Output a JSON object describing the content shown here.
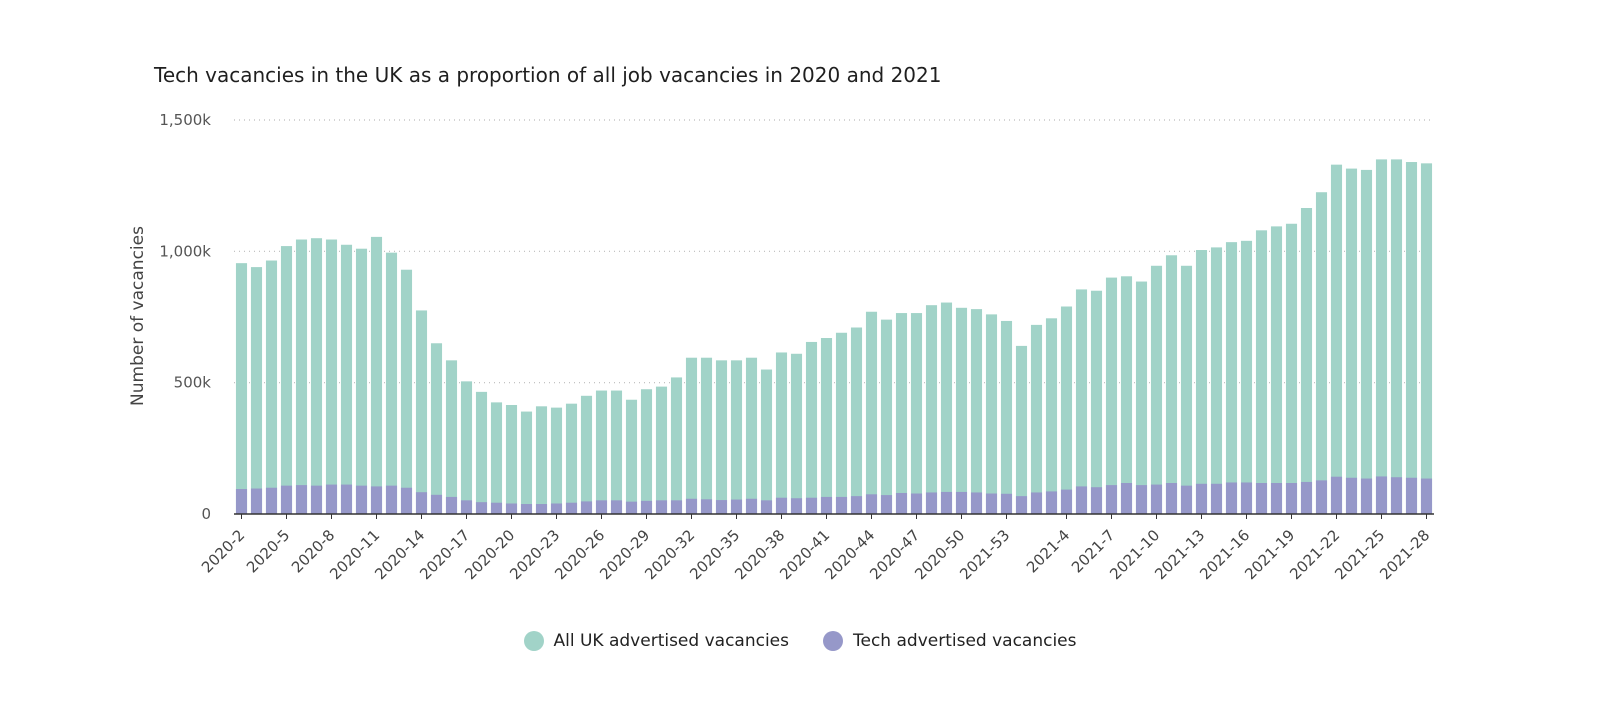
{
  "colors": {
    "all": "#a1d3c8",
    "tech": "#9698c9",
    "grid": "#bbbbbb",
    "axis": "#333333"
  },
  "chart_data": {
    "type": "bar",
    "title": "Tech vacancies in the UK as a proportion of all job vacancies in 2020 and 2021",
    "ylabel": "Number of vacancies",
    "xlabel": "",
    "ylim": [
      0,
      1500000
    ],
    "yticks": [
      {
        "value": 0,
        "label": "0"
      },
      {
        "value": 500000,
        "label": "500k"
      },
      {
        "value": 1000000,
        "label": "1,000k"
      },
      {
        "value": 1500000,
        "label": "1,500k"
      }
    ],
    "grid": true,
    "legend_position": "bottom",
    "categories": [
      "2020-2",
      "2020-3",
      "2020-4",
      "2020-5",
      "2020-6",
      "2020-7",
      "2020-8",
      "2020-9",
      "2020-10",
      "2020-11",
      "2020-12",
      "2020-13",
      "2020-14",
      "2020-15",
      "2020-16",
      "2020-17",
      "2020-18",
      "2020-19",
      "2020-20",
      "2020-21",
      "2020-22",
      "2020-23",
      "2020-24",
      "2020-25",
      "2020-26",
      "2020-27",
      "2020-28",
      "2020-29",
      "2020-30",
      "2020-31",
      "2020-32",
      "2020-33",
      "2020-34",
      "2020-35",
      "2020-36",
      "2020-37",
      "2020-38",
      "2020-39",
      "2020-40",
      "2020-41",
      "2020-42",
      "2020-43",
      "2020-44",
      "2020-45",
      "2020-46",
      "2020-47",
      "2020-48",
      "2020-49",
      "2020-50",
      "2020-51",
      "2020-52",
      "2021-53",
      "2021-1",
      "2021-2",
      "2021-3",
      "2021-4",
      "2021-5",
      "2021-6",
      "2021-7",
      "2021-8",
      "2021-9",
      "2021-10",
      "2021-11",
      "2021-12",
      "2021-13",
      "2021-14",
      "2021-15",
      "2021-16",
      "2021-17",
      "2021-18",
      "2021-19",
      "2021-20",
      "2021-21",
      "2021-22",
      "2021-23",
      "2021-24",
      "2021-25",
      "2021-26",
      "2021-27",
      "2021-28"
    ],
    "xtick_labels": [
      "2020-2",
      "2020-5",
      "2020-8",
      "2020-11",
      "2020-14",
      "2020-17",
      "2020-20",
      "2020-23",
      "2020-26",
      "2020-29",
      "2020-32",
      "2020-35",
      "2020-38",
      "2020-41",
      "2020-44",
      "2020-47",
      "2020-50",
      "2021-53",
      "2021-4",
      "2021-7",
      "2021-10",
      "2021-13",
      "2021-16",
      "2021-19",
      "2021-22",
      "2021-25",
      "2021-28"
    ],
    "series": [
      {
        "name": "All UK advertised vacancies",
        "values": [
          955000,
          940000,
          965000,
          1020000,
          1045000,
          1050000,
          1045000,
          1025000,
          1010000,
          1055000,
          995000,
          930000,
          775000,
          650000,
          585000,
          505000,
          465000,
          425000,
          415000,
          390000,
          410000,
          405000,
          420000,
          450000,
          470000,
          470000,
          435000,
          475000,
          485000,
          520000,
          595000,
          595000,
          585000,
          585000,
          595000,
          550000,
          615000,
          610000,
          655000,
          670000,
          690000,
          710000,
          770000,
          740000,
          765000,
          765000,
          795000,
          805000,
          785000,
          780000,
          760000,
          735000,
          640000,
          720000,
          745000,
          790000,
          855000,
          850000,
          900000,
          905000,
          885000,
          945000,
          985000,
          945000,
          1005000,
          1015000,
          1035000,
          1040000,
          1080000,
          1095000,
          1105000,
          1165000,
          1225000,
          1330000,
          1315000,
          1310000,
          1350000,
          1350000,
          1340000,
          1335000
        ]
      },
      {
        "name": "Tech advertised vacancies",
        "values": [
          95000,
          97000,
          100000,
          108000,
          110000,
          108000,
          112000,
          112000,
          108000,
          105000,
          108000,
          100000,
          83000,
          73000,
          65000,
          52000,
          45000,
          43000,
          40000,
          38000,
          38000,
          40000,
          43000,
          48000,
          52000,
          52000,
          47000,
          50000,
          52000,
          52000,
          58000,
          56000,
          53000,
          55000,
          58000,
          52000,
          62000,
          60000,
          62000,
          65000,
          65000,
          68000,
          75000,
          72000,
          80000,
          78000,
          82000,
          84000,
          84000,
          82000,
          78000,
          77000,
          68000,
          82000,
          86000,
          93000,
          105000,
          102000,
          110000,
          118000,
          110000,
          112000,
          118000,
          108000,
          115000,
          115000,
          120000,
          120000,
          118000,
          118000,
          118000,
          122000,
          128000,
          142000,
          138000,
          135000,
          143000,
          140000,
          138000,
          135000
        ]
      }
    ]
  }
}
